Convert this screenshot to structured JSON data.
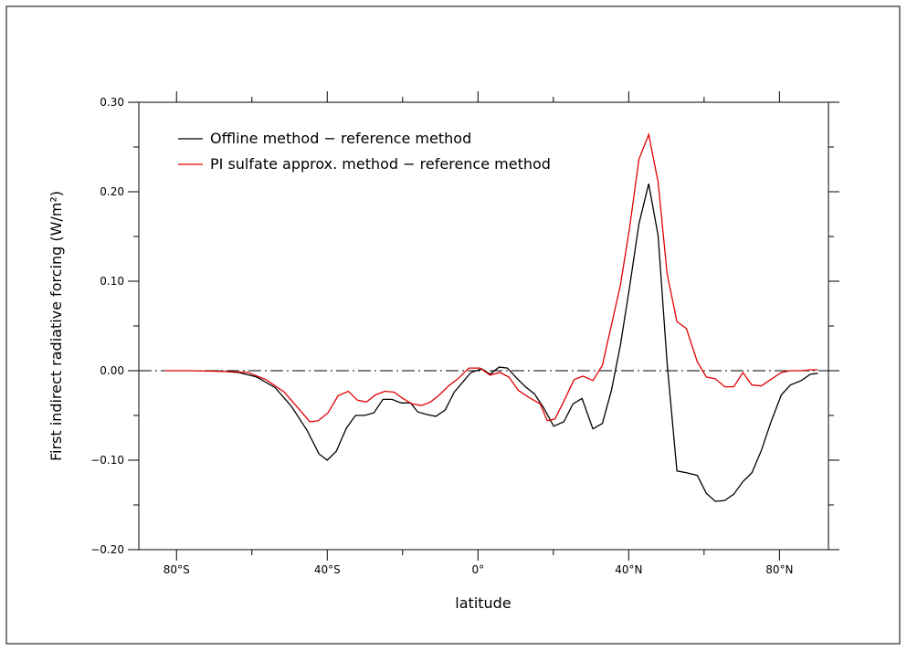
{
  "chart_data": {
    "type": "line",
    "xlabel": "latitude",
    "ylabel": "First indirect radiative forcing (W/m²)",
    "xlim": [
      -90,
      93
    ],
    "ylim": [
      -0.2,
      0.3
    ],
    "xticks": [
      {
        "value": -80,
        "label": "80°S"
      },
      {
        "value": -40,
        "label": "40°S"
      },
      {
        "value": 0,
        "label": "0°"
      },
      {
        "value": 40,
        "label": "40°N"
      },
      {
        "value": 80,
        "label": "80°N"
      }
    ],
    "xminorticks": [
      -60,
      -20,
      20,
      60
    ],
    "yticks": [
      {
        "value": 0.3,
        "label": "0.30"
      },
      {
        "value": 0.2,
        "label": "0.20"
      },
      {
        "value": 0.1,
        "label": "0.10"
      },
      {
        "value": 0,
        "label": "0.00"
      },
      {
        "value": -0.1,
        "label": "−0.10"
      },
      {
        "value": -0.2,
        "label": "−0.20"
      }
    ],
    "yminorticks": [
      0.25,
      0.15,
      0.05,
      -0.05,
      -0.15
    ],
    "reference_line": 0,
    "legend": "upper left",
    "series": [
      {
        "name": "Offline method − reference method",
        "color": "#000000",
        "x": [
          -69.6,
          -63.5,
          -58.7,
          -53.8,
          -49.5,
          -45.3,
          -42.2,
          -40,
          -37.6,
          -34.9,
          -32.5,
          -30.1,
          -27.6,
          -25.2,
          -22.8,
          -20.4,
          -17.9,
          -16,
          -13.6,
          -11.2,
          -8.7,
          -6.3,
          -3.9,
          -1.9,
          1,
          3.2,
          5.6,
          7.8,
          10.2,
          12.6,
          15,
          17.5,
          20.1,
          22.8,
          25.2,
          27.6,
          30.5,
          33,
          35.4,
          37.8,
          40.2,
          42.7,
          45.3,
          47.8,
          50.2,
          52.8,
          55.3,
          58.2,
          60.6,
          63,
          65.5,
          67.9,
          70.3,
          72.7,
          75.2,
          77.6,
          80.5,
          82.9,
          85.8,
          88.2,
          90.2
        ],
        "values": [
          0,
          -0.002,
          -0.007,
          -0.019,
          -0.04,
          -0.067,
          -0.093,
          -0.1,
          -0.09,
          -0.064,
          -0.05,
          -0.05,
          -0.047,
          -0.032,
          -0.032,
          -0.036,
          -0.036,
          -0.046,
          -0.049,
          -0.051,
          -0.044,
          -0.024,
          -0.012,
          -0.002,
          0.002,
          -0.004,
          0.004,
          0.003,
          -0.008,
          -0.018,
          -0.026,
          -0.042,
          -0.062,
          -0.057,
          -0.037,
          -0.031,
          -0.065,
          -0.059,
          -0.022,
          0.029,
          0.093,
          0.164,
          0.209,
          0.151,
          0.008,
          -0.112,
          -0.114,
          -0.117,
          -0.137,
          -0.146,
          -0.145,
          -0.138,
          -0.124,
          -0.114,
          -0.089,
          -0.059,
          -0.027,
          -0.016,
          -0.011,
          -0.004,
          -0.003
        ]
      },
      {
        "name": "PI sulfate approx. method − reference method",
        "color": "#e00000",
        "x": [
          -83,
          -76.8,
          -65.9,
          -61,
          -56.2,
          -51.4,
          -47.5,
          -44.6,
          -42.4,
          -39.8,
          -37.1,
          -34.4,
          -32,
          -29.6,
          -27.2,
          -24.7,
          -22.3,
          -19.9,
          -17.5,
          -15,
          -12.6,
          -10.2,
          -7.8,
          -5.3,
          -2.4,
          0.5,
          3.2,
          5.8,
          8.2,
          10.7,
          13.6,
          16.5,
          18.4,
          20.4,
          22.8,
          25.5,
          27.9,
          30.5,
          33,
          35.4,
          37.8,
          40.2,
          42.7,
          45.3,
          47.8,
          50.2,
          52.8,
          55.3,
          58.2,
          60.6,
          63,
          65.5,
          67.9,
          70.3,
          72.7,
          75.2,
          77.6,
          80.5,
          82.9,
          85.8,
          88.2,
          90.2
        ],
        "values": [
          0,
          0,
          -0.001,
          -0.002,
          -0.01,
          -0.024,
          -0.043,
          -0.057,
          -0.056,
          -0.047,
          -0.028,
          -0.023,
          -0.033,
          -0.035,
          -0.027,
          -0.023,
          -0.024,
          -0.031,
          -0.037,
          -0.039,
          -0.035,
          -0.027,
          -0.017,
          -0.009,
          0.003,
          0.003,
          -0.005,
          -0.002,
          -0.007,
          -0.022,
          -0.03,
          -0.037,
          -0.056,
          -0.054,
          -0.034,
          -0.01,
          -0.006,
          -0.011,
          0.006,
          0.051,
          0.096,
          0.159,
          0.236,
          0.264,
          0.211,
          0.108,
          0.055,
          0.047,
          0.01,
          -0.007,
          -0.009,
          -0.018,
          -0.018,
          -0.002,
          -0.016,
          -0.017,
          -0.01,
          -0.002,
          0,
          0,
          0.001,
          0.001
        ]
      }
    ]
  }
}
